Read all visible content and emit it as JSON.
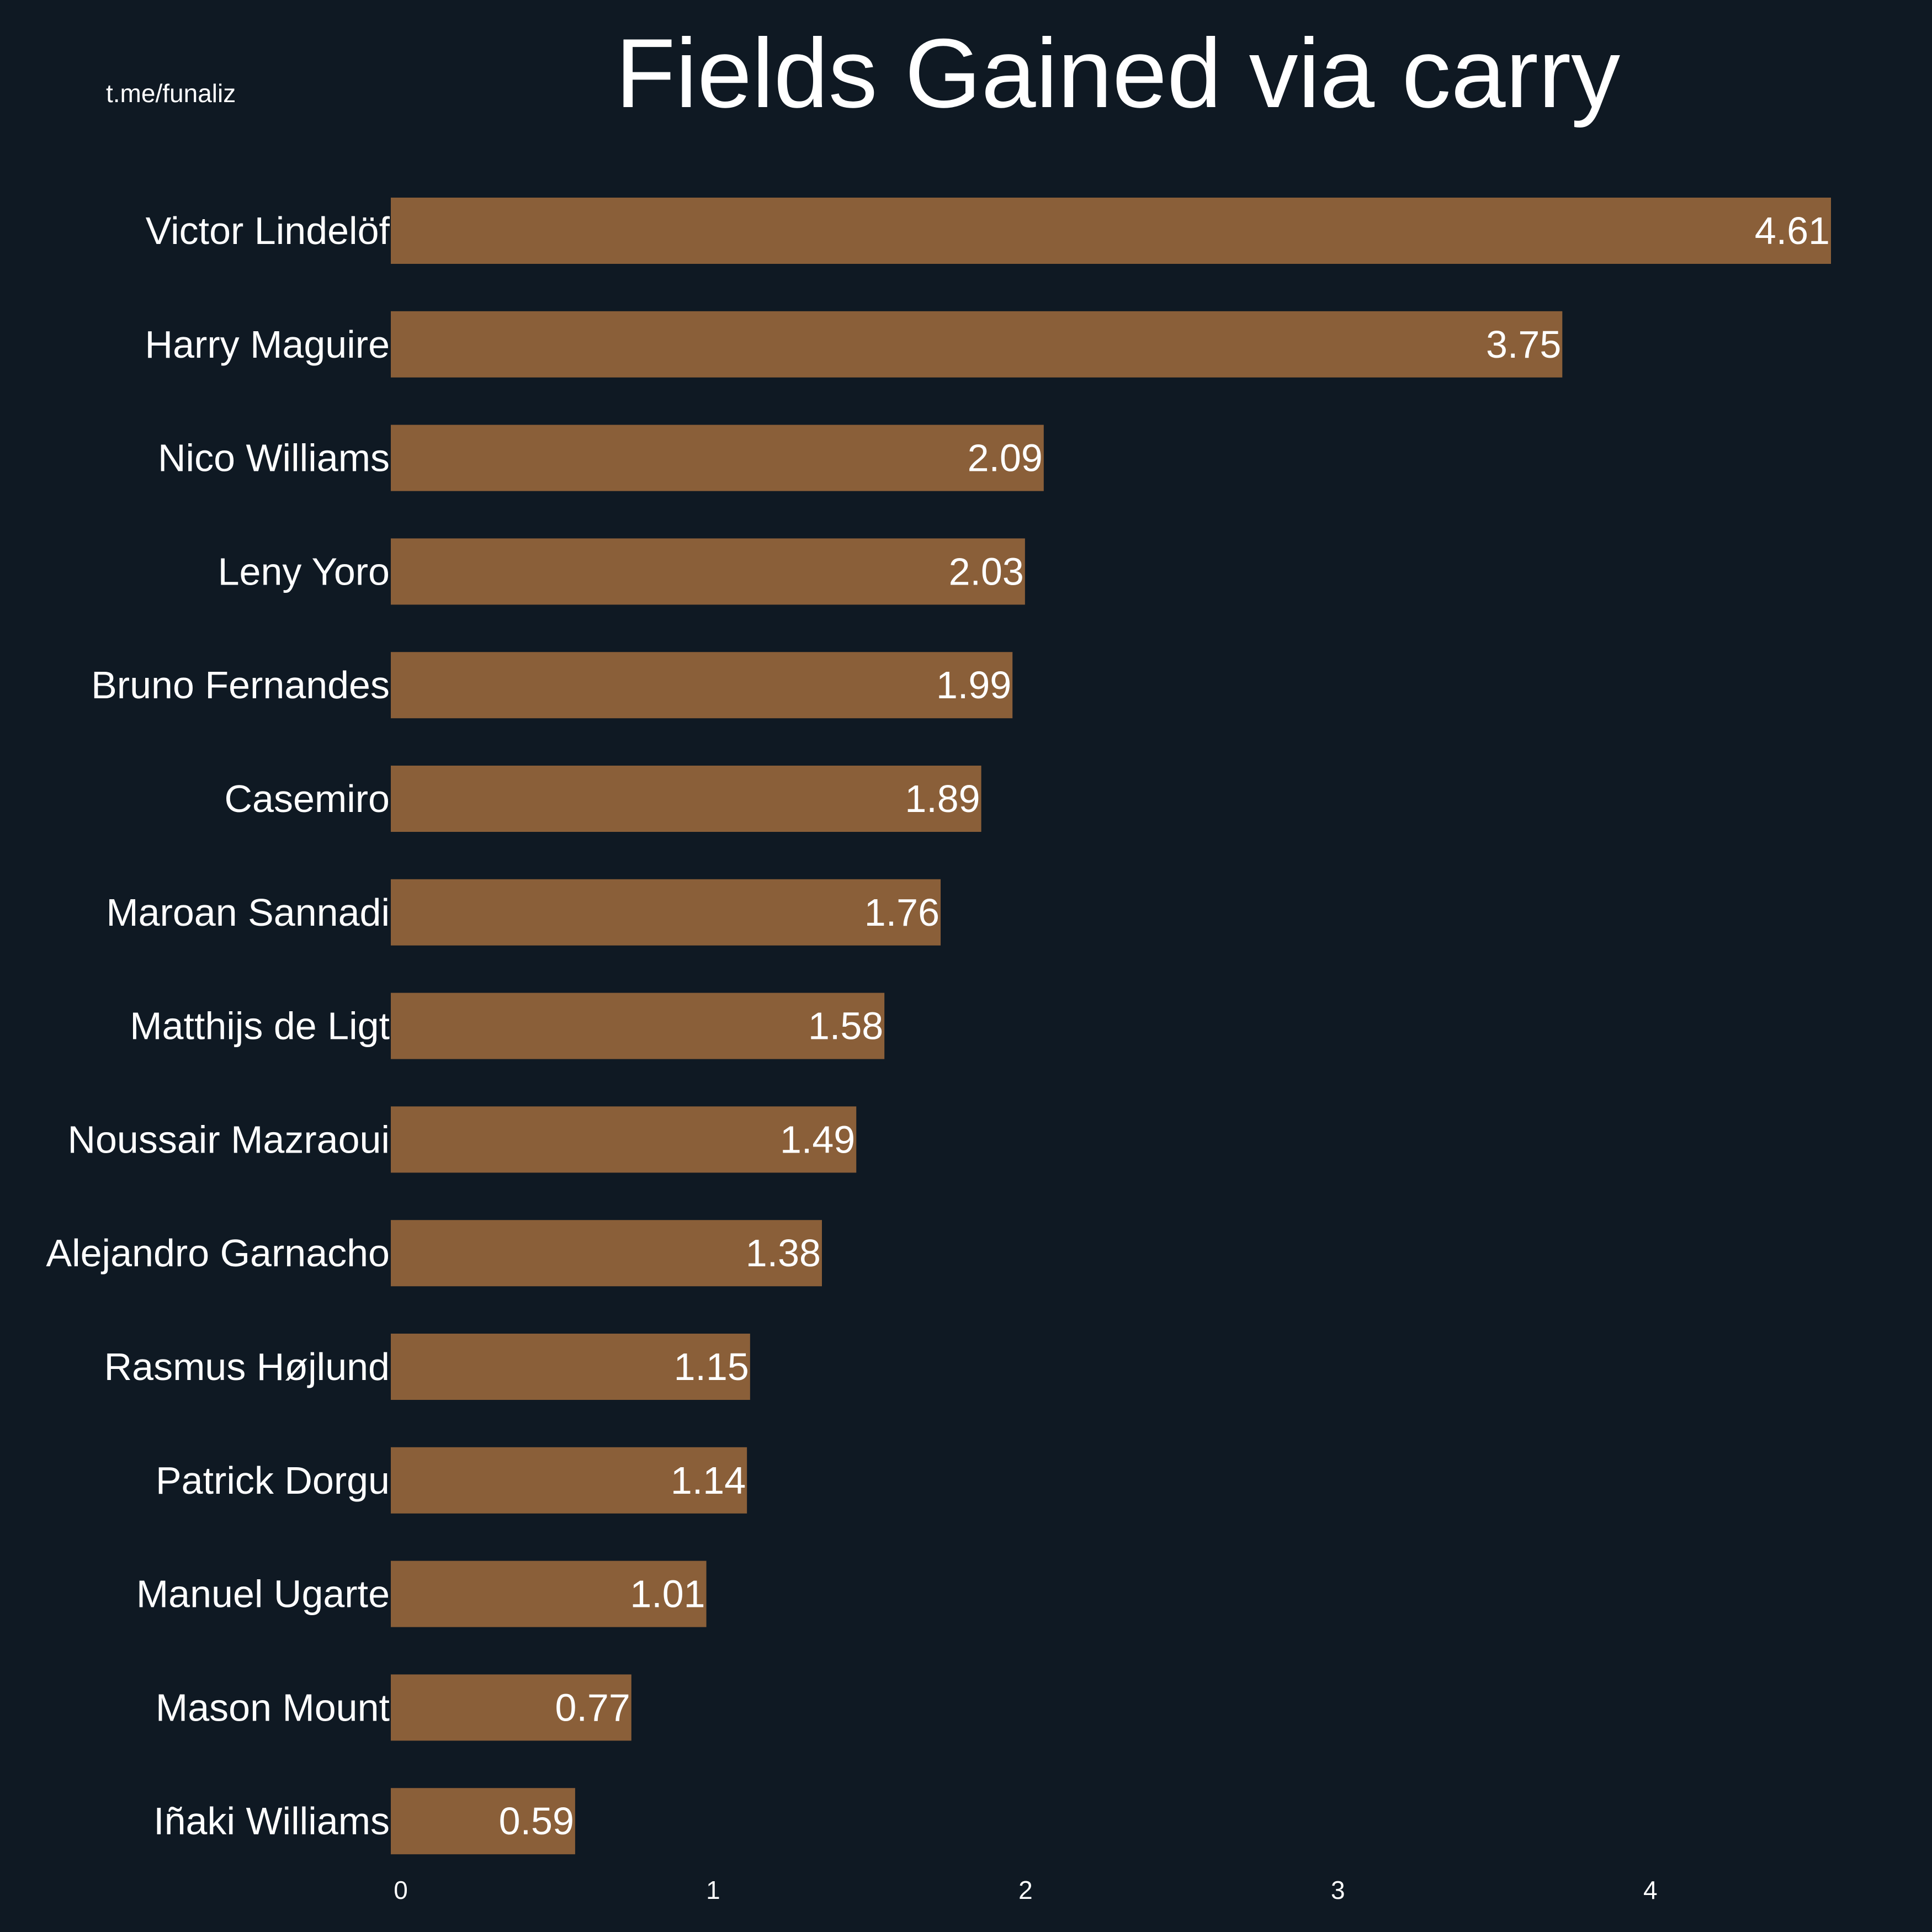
{
  "watermark": "t.me/funaliz",
  "colors": {
    "background": "#0f1923",
    "bar": "#8a5f39",
    "text": "#ffffff"
  },
  "chart_data": {
    "type": "bar",
    "orientation": "horizontal",
    "title": "Fields Gained via carry",
    "categories": [
      "Victor Lindelöf",
      "Harry Maguire",
      "Nico Williams",
      "Leny Yoro",
      "Bruno Fernandes",
      "Casemiro",
      "Maroan Sannadi",
      "Matthijs de Ligt",
      "Noussair Mazraoui",
      "Alejandro Garnacho",
      "Rasmus Højlund",
      "Patrick Dorgu",
      "Manuel Ugarte",
      "Mason Mount",
      "Iñaki Williams"
    ],
    "values": [
      4.61,
      3.75,
      2.09,
      2.03,
      1.99,
      1.89,
      1.76,
      1.58,
      1.49,
      1.38,
      1.15,
      1.14,
      1.01,
      0.77,
      0.59
    ],
    "value_labels": [
      "4.61",
      "3.75",
      "2.09",
      "2.03",
      "1.99",
      "1.89",
      "1.76",
      "1.58",
      "1.49",
      "1.38",
      "1.15",
      "1.14",
      "1.01",
      "0.77",
      "0.59"
    ],
    "xticks": [
      0,
      1,
      2,
      3,
      4
    ],
    "xtick_labels": [
      "0",
      "1",
      "2",
      "3",
      "4"
    ],
    "xlim": [
      0,
      4.61
    ],
    "grid": false,
    "legend": "none"
  }
}
